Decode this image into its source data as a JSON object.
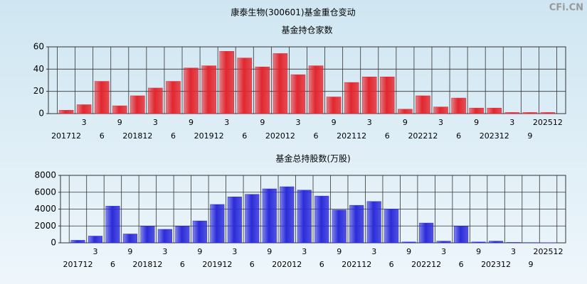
{
  "title": "康泰生物(300601)基金重仓变动",
  "watermark": "CFi.CN",
  "chart_data": [
    {
      "type": "bar",
      "title": "基金持仓家数",
      "categories": [
        "201712",
        "3",
        "6",
        "9",
        "201812",
        "3",
        "6",
        "9",
        "201912",
        "3",
        "6",
        "9",
        "202012",
        "3",
        "6",
        "9",
        "202112",
        "3",
        "6",
        "9",
        "202212",
        "3",
        "6",
        "9",
        "202312",
        "3",
        "9",
        "202512"
      ],
      "values": [
        3,
        8,
        29,
        7,
        16,
        23,
        29,
        41,
        43,
        56,
        50,
        42,
        54,
        35,
        43,
        15,
        28,
        33,
        33,
        4,
        16,
        6,
        14,
        5,
        5,
        1,
        1,
        1
      ],
      "color": "#e3262e",
      "ylim": [
        0,
        60
      ],
      "yticks": [
        0,
        20,
        40,
        60
      ],
      "grid": true
    },
    {
      "type": "bar",
      "title": "基金总持股数(万股)",
      "categories": [
        "201712",
        "3",
        "6",
        "9",
        "201812",
        "3",
        "6",
        "9",
        "201912",
        "3",
        "6",
        "9",
        "202012",
        "3",
        "6",
        "9",
        "202112",
        "3",
        "6",
        "9",
        "202212",
        "3",
        "6",
        "9",
        "202312",
        "3",
        "9",
        "202512"
      ],
      "values": [
        300,
        800,
        4350,
        1050,
        1950,
        1600,
        1950,
        2600,
        4550,
        5450,
        5750,
        6400,
        6650,
        6250,
        5550,
        3900,
        4450,
        4900,
        4000,
        100,
        2350,
        200,
        1950,
        100,
        200,
        50,
        30,
        20
      ],
      "color": "#2b2bd9",
      "ylim": [
        0,
        8000
      ],
      "yticks": [
        0,
        2000,
        4000,
        6000,
        8000
      ],
      "grid": true
    }
  ]
}
